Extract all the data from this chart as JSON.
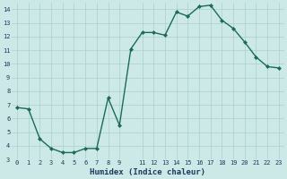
{
  "x": [
    0,
    1,
    2,
    3,
    4,
    5,
    6,
    7,
    8,
    9,
    10,
    11,
    12,
    13,
    14,
    15,
    16,
    17,
    18,
    19,
    20,
    21,
    22,
    23
  ],
  "y": [
    6.8,
    6.7,
    4.5,
    3.8,
    3.5,
    3.5,
    3.8,
    3.8,
    7.5,
    5.5,
    11.1,
    12.3,
    12.3,
    12.1,
    13.8,
    13.5,
    14.2,
    14.3,
    13.2,
    12.6,
    11.6,
    10.5,
    9.8,
    9.7
  ],
  "xlabel": "Humidex (Indice chaleur)",
  "ylim": [
    3,
    14.5
  ],
  "xlim": [
    -0.5,
    23.5
  ],
  "bg_color": "#cce9e7",
  "line_color": "#1a6b5a",
  "grid_color": "#aacfcc",
  "xlabel_color": "#1a3a5c",
  "tick_color": "#1a3a5c",
  "yticks": [
    3,
    4,
    5,
    6,
    7,
    8,
    9,
    10,
    11,
    12,
    13,
    14
  ],
  "xticks": [
    0,
    1,
    2,
    3,
    4,
    5,
    6,
    7,
    8,
    9,
    11,
    12,
    13,
    14,
    15,
    16,
    17,
    18,
    19,
    20,
    21,
    22,
    23
  ],
  "xticklabels": [
    "0",
    "1",
    "2",
    "3",
    "4",
    "5",
    "6",
    "7",
    "8",
    "9",
    "11",
    "12",
    "13",
    "14",
    "15",
    "16",
    "17",
    "18",
    "19",
    "20",
    "21",
    "22",
    "23"
  ]
}
